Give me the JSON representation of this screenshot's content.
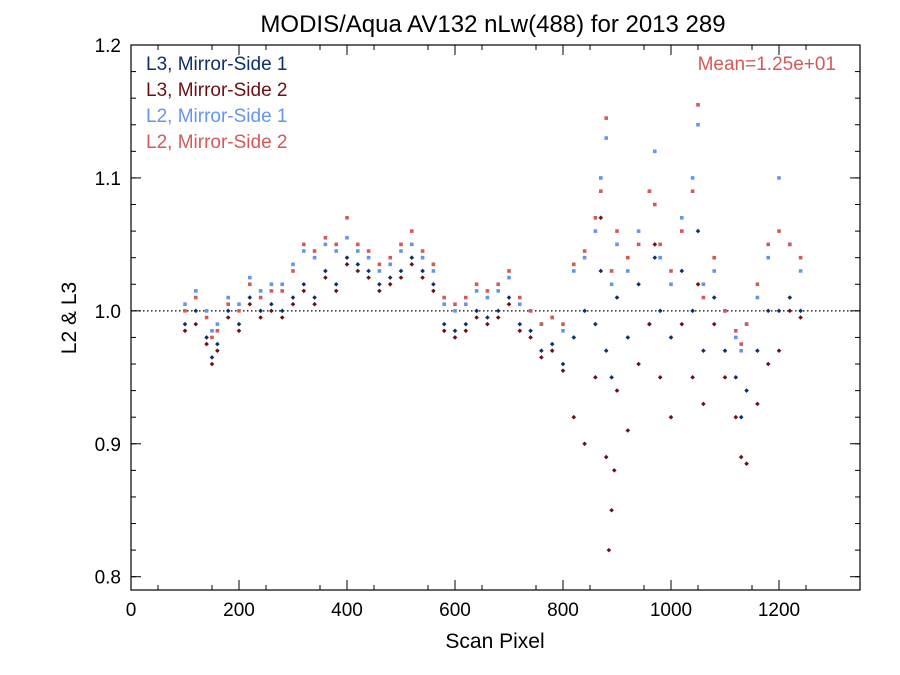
{
  "chart_data": {
    "type": "scatter",
    "title": "MODIS/Aqua AV132 nLw(488) for 2013 289",
    "xlabel": "Scan Pixel",
    "ylabel": "L2 & L3",
    "xlim": [
      0,
      1350
    ],
    "ylim": [
      0.79,
      1.2
    ],
    "xticks": [
      0,
      200,
      400,
      600,
      800,
      1000,
      1200
    ],
    "yticks": [
      0.8,
      0.9,
      1.0,
      1.1,
      1.2
    ],
    "xtick_labels": [
      "0",
      "200",
      "400",
      "600",
      "800",
      "1000",
      "1200"
    ],
    "ytick_labels": [
      "0.8",
      "0.9",
      "1.0",
      "1.1",
      "1.2"
    ],
    "reference_line": {
      "y": 1.0,
      "style": "dotted"
    },
    "annotation": {
      "text": "Mean=1.25e+01",
      "color": "#d45a5a",
      "placement": "top-right"
    },
    "legend_placement": "top-left",
    "grid": false,
    "series": [
      {
        "name": "L3, Mirror-Side 1",
        "color": "#0d2f6b",
        "x": [
          100,
          120,
          140,
          150,
          160,
          180,
          200,
          220,
          240,
          260,
          280,
          300,
          320,
          340,
          360,
          380,
          400,
          420,
          440,
          460,
          480,
          500,
          520,
          540,
          560,
          580,
          600,
          620,
          640,
          660,
          680,
          700,
          720,
          740,
          760,
          780,
          800,
          820,
          840,
          860,
          870,
          880,
          890,
          900,
          920,
          940,
          960,
          970,
          980,
          1000,
          1020,
          1040,
          1050,
          1060,
          1080,
          1100,
          1120,
          1130,
          1140,
          1160,
          1180,
          1200,
          1220,
          1240
        ],
        "y": [
          0.99,
          1.0,
          0.98,
          0.965,
          0.975,
          1.0,
          0.99,
          1.01,
          1.0,
          1.005,
          1.0,
          1.01,
          1.02,
          1.01,
          1.03,
          1.02,
          1.04,
          1.035,
          1.03,
          1.02,
          1.025,
          1.03,
          1.04,
          1.03,
          1.02,
          0.99,
          0.985,
          0.99,
          1.0,
          0.995,
          1.0,
          1.01,
          0.99,
          0.985,
          0.97,
          0.975,
          0.96,
          0.98,
          1.0,
          0.99,
          1.03,
          0.97,
          0.95,
          1.01,
          0.98,
          1.02,
          0.99,
          1.04,
          1.0,
          0.98,
          1.03,
          1.0,
          1.06,
          0.97,
          1.01,
          0.97,
          0.95,
          0.92,
          0.94,
          0.97,
          1.0,
          1.0,
          1.01,
          1.0
        ]
      },
      {
        "name": "L3, Mirror-Side 2",
        "color": "#6e0f14",
        "x": [
          100,
          120,
          140,
          150,
          160,
          180,
          200,
          220,
          240,
          260,
          280,
          300,
          320,
          340,
          360,
          380,
          400,
          420,
          440,
          460,
          480,
          500,
          520,
          540,
          560,
          580,
          600,
          620,
          640,
          660,
          680,
          700,
          720,
          740,
          760,
          780,
          800,
          820,
          840,
          860,
          870,
          880,
          885,
          890,
          895,
          900,
          920,
          940,
          960,
          970,
          980,
          1000,
          1020,
          1040,
          1050,
          1060,
          1080,
          1100,
          1120,
          1130,
          1140,
          1160,
          1180,
          1200,
          1220,
          1240
        ],
        "y": [
          0.985,
          0.99,
          0.975,
          0.96,
          0.97,
          0.995,
          0.985,
          1.005,
          0.995,
          1.0,
          0.995,
          1.005,
          1.015,
          1.005,
          1.025,
          1.015,
          1.035,
          1.03,
          1.025,
          1.015,
          1.02,
          1.025,
          1.035,
          1.025,
          1.015,
          0.985,
          0.98,
          0.985,
          0.995,
          0.99,
          0.995,
          1.005,
          0.985,
          0.98,
          0.965,
          0.97,
          0.955,
          0.92,
          0.9,
          0.95,
          1.07,
          0.89,
          0.82,
          0.85,
          0.88,
          0.94,
          0.91,
          0.96,
          0.99,
          1.05,
          0.95,
          0.92,
          0.99,
          0.95,
          1.02,
          0.93,
          0.99,
          0.95,
          0.92,
          0.89,
          0.885,
          0.93,
          0.96,
          0.97,
          1.0,
          0.995
        ]
      },
      {
        "name": "L2, Mirror-Side 1",
        "color": "#6495ed",
        "x": [
          100,
          120,
          140,
          150,
          160,
          180,
          200,
          220,
          240,
          260,
          280,
          300,
          320,
          340,
          360,
          380,
          400,
          420,
          440,
          460,
          480,
          500,
          520,
          540,
          560,
          580,
          600,
          620,
          640,
          660,
          680,
          700,
          720,
          740,
          760,
          780,
          800,
          820,
          840,
          860,
          870,
          880,
          890,
          900,
          920,
          940,
          960,
          970,
          980,
          1000,
          1020,
          1040,
          1050,
          1060,
          1080,
          1100,
          1120,
          1130,
          1140,
          1160,
          1180,
          1200,
          1220,
          1240
        ],
        "y": [
          1.005,
          1.015,
          1.0,
          0.985,
          0.99,
          1.01,
          1.005,
          1.025,
          1.015,
          1.02,
          1.02,
          1.035,
          1.045,
          1.04,
          1.05,
          1.045,
          1.055,
          1.045,
          1.04,
          1.03,
          1.035,
          1.045,
          1.05,
          1.04,
          1.03,
          1.005,
          1.0,
          1.005,
          1.015,
          1.01,
          1.015,
          1.025,
          1.005,
          1.0,
          0.99,
          0.995,
          0.985,
          1.03,
          1.04,
          1.06,
          1.1,
          1.13,
          1.02,
          1.05,
          1.03,
          1.06,
          1.09,
          1.12,
          1.04,
          1.02,
          1.07,
          1.1,
          1.14,
          1.02,
          1.03,
          1.0,
          0.98,
          0.97,
          0.99,
          1.01,
          1.04,
          1.1,
          1.05,
          1.03
        ]
      },
      {
        "name": "L2, Mirror-Side 2",
        "color": "#d45a5a",
        "x": [
          100,
          120,
          140,
          150,
          160,
          180,
          200,
          220,
          240,
          260,
          280,
          300,
          320,
          340,
          360,
          380,
          400,
          420,
          440,
          460,
          480,
          500,
          520,
          540,
          560,
          580,
          600,
          620,
          640,
          660,
          680,
          700,
          720,
          740,
          760,
          780,
          800,
          820,
          840,
          860,
          870,
          880,
          890,
          900,
          920,
          940,
          960,
          970,
          980,
          1000,
          1020,
          1040,
          1050,
          1060,
          1080,
          1100,
          1120,
          1130,
          1140,
          1160,
          1180,
          1200,
          1220,
          1240
        ],
        "y": [
          1.0,
          1.01,
          0.995,
          0.98,
          0.985,
          1.005,
          1.0,
          1.02,
          1.01,
          1.015,
          1.015,
          1.03,
          1.05,
          1.045,
          1.055,
          1.05,
          1.07,
          1.05,
          1.045,
          1.035,
          1.04,
          1.05,
          1.06,
          1.045,
          1.035,
          1.01,
          1.005,
          1.01,
          1.02,
          1.015,
          1.02,
          1.03,
          1.01,
          1.0,
          0.99,
          0.995,
          0.99,
          1.035,
          1.045,
          1.07,
          1.09,
          1.145,
          1.03,
          1.06,
          1.04,
          1.05,
          1.09,
          1.08,
          1.05,
          1.03,
          1.06,
          1.09,
          1.155,
          1.01,
          1.04,
          1.0,
          0.985,
          0.975,
          0.99,
          1.02,
          1.05,
          1.06,
          1.05,
          1.04
        ]
      }
    ]
  }
}
